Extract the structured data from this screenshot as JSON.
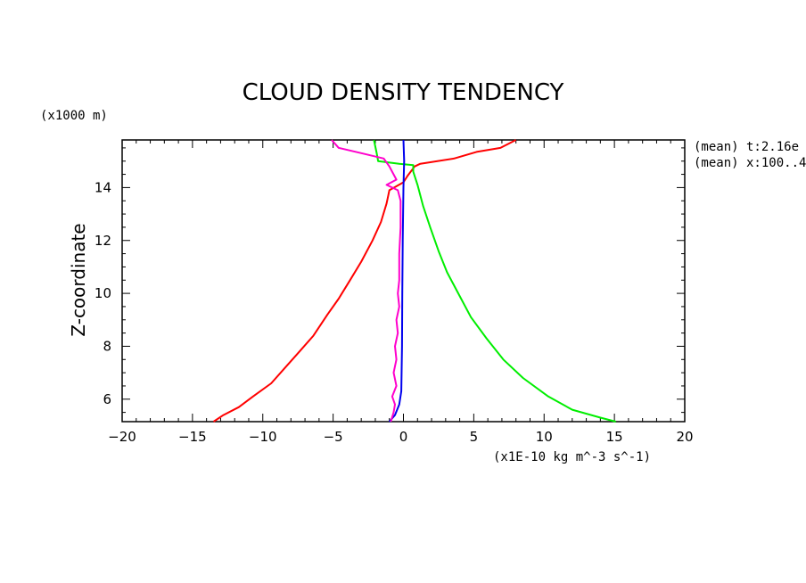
{
  "chart_data": {
    "type": "line",
    "title": "CLOUD DENSITY TENDENCY",
    "xlabel": "(x1E-10 kg m^-3 s^-1)",
    "ylabel": "Z-coordinate",
    "y_units": "(x1000 m)",
    "xlim": [
      -20,
      20
    ],
    "ylim": [
      5.15,
      15.8
    ],
    "x_ticks": [
      "-20",
      "-15",
      "-10",
      "-5",
      "0",
      "5",
      "10",
      "15",
      "20"
    ],
    "y_ticks": [
      "6",
      "8",
      "10",
      "12",
      "14"
    ],
    "annotations": [
      "(mean) t:2.16e",
      "(mean) x:100..4"
    ],
    "series": [
      {
        "name": "red",
        "color": "#ff0000",
        "points": [
          [
            -13.5,
            5.15
          ],
          [
            -12.8,
            5.4
          ],
          [
            -11.7,
            5.7
          ],
          [
            -10.7,
            6.1
          ],
          [
            -9.4,
            6.6
          ],
          [
            -8.4,
            7.2
          ],
          [
            -7.4,
            7.8
          ],
          [
            -6.4,
            8.4
          ],
          [
            -5.4,
            9.2
          ],
          [
            -4.6,
            9.8
          ],
          [
            -3.8,
            10.5
          ],
          [
            -3.0,
            11.2
          ],
          [
            -2.2,
            12.0
          ],
          [
            -1.6,
            12.7
          ],
          [
            -1.2,
            13.4
          ],
          [
            -1.0,
            13.9
          ],
          [
            0.0,
            14.2
          ],
          [
            0.3,
            14.45
          ],
          [
            0.8,
            14.8
          ],
          [
            1.2,
            14.9
          ],
          [
            3.6,
            15.1
          ],
          [
            5.2,
            15.35
          ],
          [
            6.9,
            15.5
          ],
          [
            8.0,
            15.8
          ]
        ]
      },
      {
        "name": "green",
        "color": "#00ee00",
        "points": [
          [
            15.1,
            5.15
          ],
          [
            14.0,
            5.3
          ],
          [
            12.0,
            5.6
          ],
          [
            10.3,
            6.1
          ],
          [
            8.5,
            6.8
          ],
          [
            7.1,
            7.5
          ],
          [
            5.9,
            8.3
          ],
          [
            4.8,
            9.1
          ],
          [
            3.9,
            10.0
          ],
          [
            3.1,
            10.8
          ],
          [
            2.5,
            11.6
          ],
          [
            1.9,
            12.5
          ],
          [
            1.4,
            13.3
          ],
          [
            1.0,
            14.1
          ],
          [
            0.7,
            14.6
          ],
          [
            0.7,
            14.85
          ],
          [
            -0.3,
            14.9
          ],
          [
            -1.8,
            15.0
          ],
          [
            -1.9,
            15.3
          ],
          [
            -2.1,
            15.8
          ]
        ]
      },
      {
        "name": "blue",
        "color": "#0000ee",
        "points": [
          [
            -1.0,
            5.15
          ],
          [
            -0.6,
            5.4
          ],
          [
            -0.3,
            5.8
          ],
          [
            -0.15,
            6.3
          ],
          [
            -0.1,
            8.0
          ],
          [
            -0.08,
            10.0
          ],
          [
            -0.05,
            12.0
          ],
          [
            0.0,
            14.0
          ],
          [
            0.05,
            15.0
          ],
          [
            0.0,
            15.8
          ]
        ]
      },
      {
        "name": "magenta",
        "color": "#ff00cc",
        "points": [
          [
            -0.9,
            5.15
          ],
          [
            -0.7,
            5.5
          ],
          [
            -0.6,
            5.8
          ],
          [
            -0.8,
            6.1
          ],
          [
            -0.5,
            6.5
          ],
          [
            -0.7,
            7.0
          ],
          [
            -0.5,
            7.5
          ],
          [
            -0.6,
            8.0
          ],
          [
            -0.4,
            8.5
          ],
          [
            -0.5,
            9.0
          ],
          [
            -0.3,
            9.5
          ],
          [
            -0.4,
            10.0
          ],
          [
            -0.3,
            10.5
          ],
          [
            -0.3,
            11.5
          ],
          [
            -0.2,
            12.5
          ],
          [
            -0.2,
            13.5
          ],
          [
            -0.4,
            13.9
          ],
          [
            -1.2,
            14.1
          ],
          [
            -0.5,
            14.3
          ],
          [
            -1.0,
            14.8
          ],
          [
            -1.4,
            15.1
          ],
          [
            -3.0,
            15.3
          ],
          [
            -4.6,
            15.5
          ],
          [
            -5.1,
            15.8
          ]
        ]
      }
    ]
  }
}
